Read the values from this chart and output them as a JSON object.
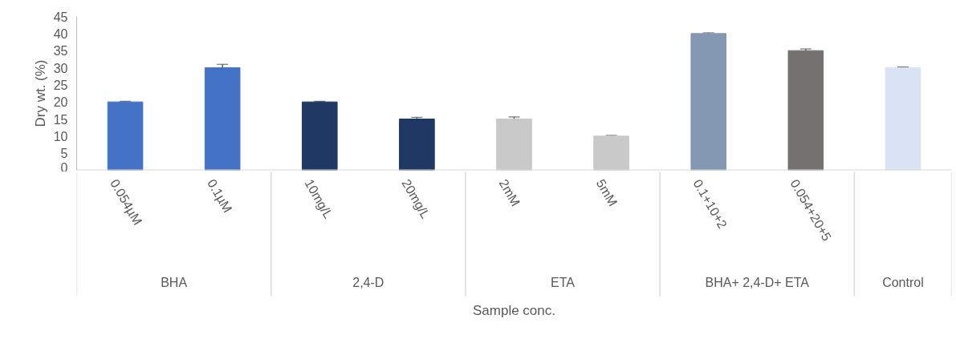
{
  "chart_data": {
    "type": "bar",
    "xlabel": "Sample conc.",
    "ylabel": "Dry wt. (%)",
    "categories": [
      "0.054µM",
      "0.1µM",
      "10mg/L",
      "20mg/L",
      "2mM",
      "5mM",
      "0.1+10+2",
      "0.054+20+5",
      null
    ],
    "values": [
      20,
      30,
      20,
      15,
      15,
      10,
      40,
      35,
      30
    ],
    "errors": [
      0.2,
      1,
      0.2,
      0.5,
      0.6,
      0.2,
      0.2,
      0.5,
      0.2
    ],
    "colors": [
      "#4472c4",
      "#4472c4",
      "#203864",
      "#203864",
      "#c9c9c9",
      "#c9c9c9",
      "#8497b0",
      "#767171",
      "#dae3f3"
    ],
    "ylim": [
      0,
      45
    ],
    "yticks": [
      0,
      5,
      10,
      15,
      20,
      25,
      30,
      35,
      40,
      45
    ],
    "grid": false,
    "annotations": [
      "BHA",
      "2,4-D",
      "ETA",
      "BHA+ 2,4-D+ ETA",
      "Control"
    ]
  }
}
